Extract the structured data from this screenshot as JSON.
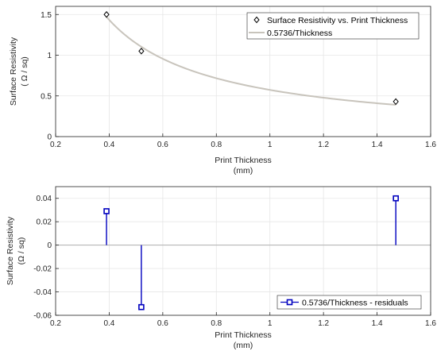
{
  "chart_data": [
    {
      "type": "scatter",
      "xlabel_line1": "Print Thickness",
      "xlabel_line2": "(mm)",
      "ylabel_line1": "Surface Resistivity",
      "ylabel_line2": "( Ω / sq)",
      "xlim": [
        0.2,
        1.6
      ],
      "ylim": [
        0,
        1.6
      ],
      "xticks": [
        "0.2",
        "0.4",
        "0.6",
        "0.8",
        "1",
        "1.2",
        "1.4",
        "1.6"
      ],
      "yticks": [
        "0",
        "0.5",
        "1",
        "1.5"
      ],
      "ytick_values": [
        0,
        0.5,
        1,
        1.5
      ],
      "grid": true,
      "legend_position": "top-right",
      "series": [
        {
          "name": "Surface Resistivity vs. Print Thickness",
          "kind": "markers",
          "marker": "diamond",
          "color": "#000000",
          "x": [
            0.39,
            0.52,
            1.47
          ],
          "y": [
            1.5,
            1.05,
            0.43
          ]
        },
        {
          "name": "0.5736/Thickness",
          "kind": "curve",
          "color": "#c8c4bc",
          "coefficient": 0.5736,
          "x_range": [
            0.39,
            1.47
          ]
        }
      ]
    },
    {
      "type": "stem",
      "xlabel_line1": "Print Thickness",
      "xlabel_line2": "(mm)",
      "ylabel_line1": "Surface Resistivity",
      "ylabel_line2": "(Ω / sq)",
      "xlim": [
        0.2,
        1.6
      ],
      "ylim": [
        -0.06,
        0.05
      ],
      "xticks": [
        "0.2",
        "0.4",
        "0.6",
        "0.8",
        "1",
        "1.2",
        "1.4",
        "1.6"
      ],
      "yticks": [
        "-0.06",
        "-0.04",
        "-0.02",
        "0",
        "0.02",
        "0.04"
      ],
      "ytick_values": [
        -0.06,
        -0.04,
        -0.02,
        0,
        0.02,
        0.04
      ],
      "grid": true,
      "legend_position": "bottom-right",
      "series": [
        {
          "name": "0.5736/Thickness - residuals",
          "kind": "stem",
          "marker": "square",
          "color": "#0000bf",
          "x": [
            0.39,
            0.52,
            1.47
          ],
          "y": [
            0.029,
            -0.053,
            0.04
          ]
        }
      ]
    }
  ]
}
